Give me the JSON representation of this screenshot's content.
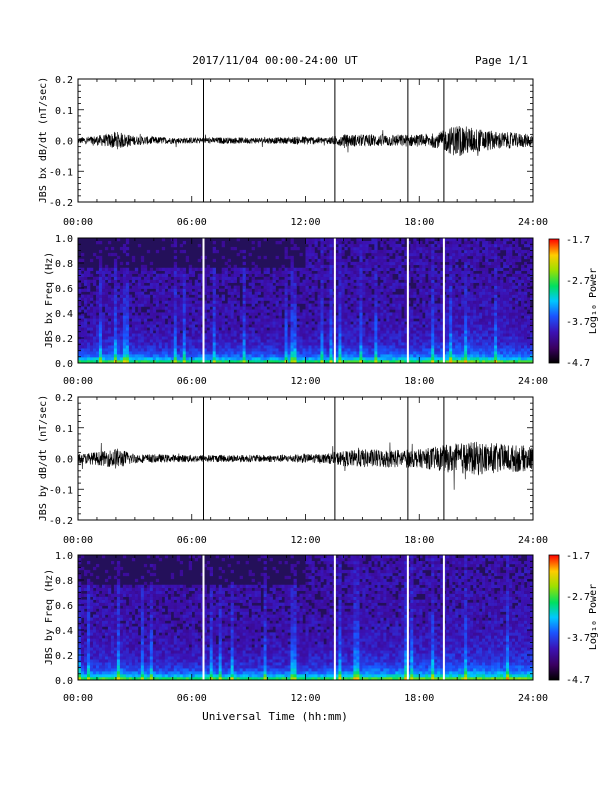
{
  "header": {
    "title": "2017/11/04  00:00-24:00 UT",
    "page": "Page 1/1"
  },
  "xaxis_label": "Universal Time (hh:mm)",
  "colorbar": {
    "label": "Log₁₀ Power",
    "ticks": [
      "-1.7",
      "-2.7",
      "-3.7",
      "-4.7"
    ]
  },
  "chart_data": [
    {
      "type": "line",
      "id": "bx-wave",
      "ylabel": "JBS bx dB/dt (nT/sec)",
      "x_ticks": [
        "00:00",
        "06:00",
        "12:00",
        "18:00",
        "24:00"
      ],
      "xlim_hours": [
        0,
        24
      ],
      "ylim": [
        -0.2,
        0.2
      ],
      "y_ticks": [
        "0.2",
        "0.1",
        "0.0",
        "-0.1",
        "-0.2"
      ],
      "baseline": 0.0,
      "envelope": [
        [
          0,
          0.01
        ],
        [
          1.5,
          0.02
        ],
        [
          2,
          0.03
        ],
        [
          3,
          0.015
        ],
        [
          5,
          0.01
        ],
        [
          7,
          0.01
        ],
        [
          9,
          0.01
        ],
        [
          11,
          0.01
        ],
        [
          12,
          0.015
        ],
        [
          13,
          0.01
        ],
        [
          14,
          0.02
        ],
        [
          15,
          0.02
        ],
        [
          16,
          0.02
        ],
        [
          17,
          0.02
        ],
        [
          18,
          0.02
        ],
        [
          19,
          0.025
        ],
        [
          20,
          0.055
        ],
        [
          21,
          0.04
        ],
        [
          22,
          0.03
        ],
        [
          23,
          0.025
        ],
        [
          24,
          0.02
        ]
      ],
      "data_gaps_hours": [
        6.62,
        13.55,
        17.4,
        19.3
      ]
    },
    {
      "type": "heatmap",
      "id": "bx-spectrogram",
      "ylabel": "JBS bx Freq (Hz)",
      "x_ticks": [
        "00:00",
        "06:00",
        "12:00",
        "18:00",
        "24:00"
      ],
      "xlim_hours": [
        0,
        24
      ],
      "ylim": [
        0,
        1.0
      ],
      "y_ticks": [
        "1.0",
        "0.8",
        "0.6",
        "0.4",
        "0.2",
        "0.0"
      ],
      "zlim": [
        -4.7,
        -1.7
      ],
      "data_gaps_hours": [
        6.62,
        13.55,
        17.4,
        19.3
      ]
    },
    {
      "type": "line",
      "id": "by-wave",
      "ylabel": "JBS by dB/dt (nT/sec)",
      "x_ticks": [
        "00:00",
        "06:00",
        "12:00",
        "18:00",
        "24:00"
      ],
      "xlim_hours": [
        0,
        24
      ],
      "ylim": [
        -0.2,
        0.2
      ],
      "y_ticks": [
        "0.2",
        "0.1",
        "0.0",
        "-0.1",
        "-0.2"
      ],
      "baseline": 0.0,
      "envelope": [
        [
          0,
          0.015
        ],
        [
          1.5,
          0.025
        ],
        [
          2,
          0.035
        ],
        [
          3,
          0.015
        ],
        [
          5,
          0.012
        ],
        [
          7,
          0.012
        ],
        [
          9,
          0.012
        ],
        [
          11,
          0.012
        ],
        [
          12,
          0.015
        ],
        [
          13,
          0.015
        ],
        [
          14,
          0.025
        ],
        [
          15,
          0.03
        ],
        [
          16,
          0.03
        ],
        [
          17,
          0.03
        ],
        [
          18,
          0.03
        ],
        [
          19,
          0.04
        ],
        [
          20,
          0.05
        ],
        [
          21,
          0.055
        ],
        [
          22,
          0.05
        ],
        [
          23,
          0.045
        ],
        [
          24,
          0.04
        ]
      ],
      "data_gaps_hours": [
        6.62,
        13.55,
        17.4,
        19.3
      ]
    },
    {
      "type": "heatmap",
      "id": "by-spectrogram",
      "ylabel": "JBS by Freq (Hz)",
      "x_ticks": [
        "00:00",
        "06:00",
        "12:00",
        "18:00",
        "24:00"
      ],
      "xlim_hours": [
        0,
        24
      ],
      "ylim": [
        0,
        1.0
      ],
      "y_ticks": [
        "1.0",
        "0.8",
        "0.6",
        "0.4",
        "0.2",
        "0.0"
      ],
      "zlim": [
        -4.7,
        -1.7
      ],
      "data_gaps_hours": [
        6.62,
        13.55,
        17.4,
        19.3
      ]
    }
  ]
}
